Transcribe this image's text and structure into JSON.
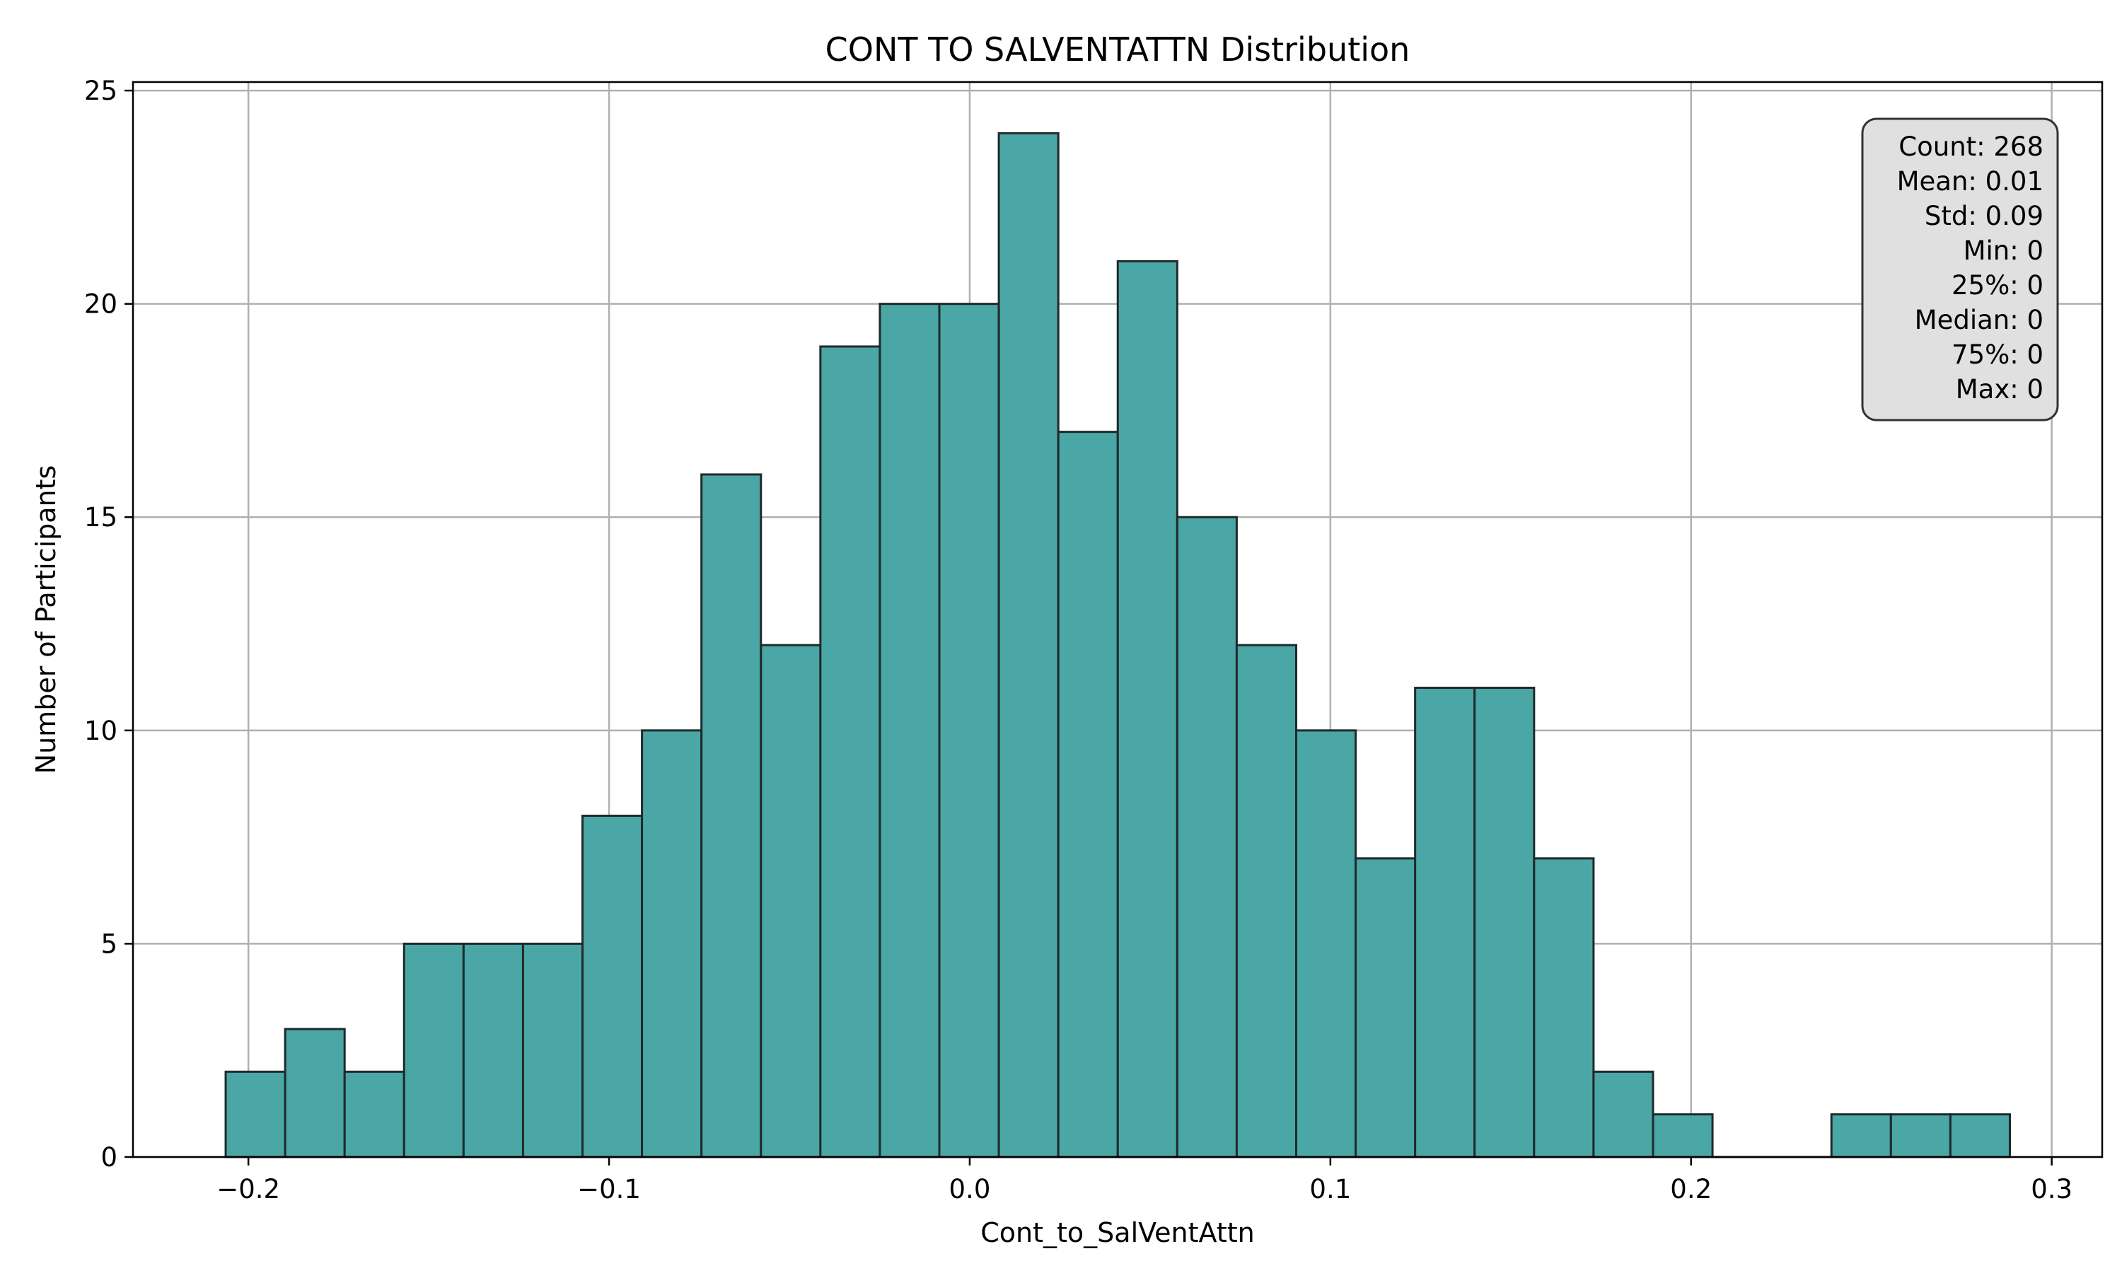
{
  "chart_data": {
    "type": "bar",
    "title": "CONT TO SALVENTATTN Distribution",
    "xlabel": "Cont_to_SalVentAttn",
    "ylabel": "Number of Participants",
    "xlim": [
      -0.232,
      0.314
    ],
    "ylim": [
      0,
      25.2
    ],
    "x_ticks": [
      -0.2,
      -0.1,
      0.0,
      0.1,
      0.2,
      0.3
    ],
    "x_tick_labels": [
      "−0.2",
      "−0.1",
      "0.0",
      "0.1",
      "0.2",
      "0.3"
    ],
    "y_ticks": [
      0,
      5,
      10,
      15,
      20,
      25
    ],
    "y_tick_labels": [
      "0",
      "5",
      "10",
      "15",
      "20",
      "25"
    ],
    "grid": true,
    "bins": {
      "start": -0.2063,
      "width": 0.01649,
      "counts": [
        2,
        3,
        2,
        5,
        5,
        5,
        8,
        10,
        16,
        12,
        19,
        20,
        20,
        24,
        17,
        21,
        15,
        12,
        10,
        7,
        11,
        11,
        7,
        2,
        1,
        0,
        0,
        1,
        1,
        1
      ]
    },
    "bar_color": "#4ba6a6",
    "edge_color": "#1f2a2a",
    "grid_color": "#b0b0b0",
    "stats_box": {
      "lines": [
        "Count: 268",
        "Mean: 0.01",
        "Std: 0.09",
        "Min: 0",
        "25%: 0",
        "Median: 0",
        "75%: 0",
        "Max: 0"
      ],
      "position": "top-right",
      "background": "#e0e0e0"
    }
  }
}
